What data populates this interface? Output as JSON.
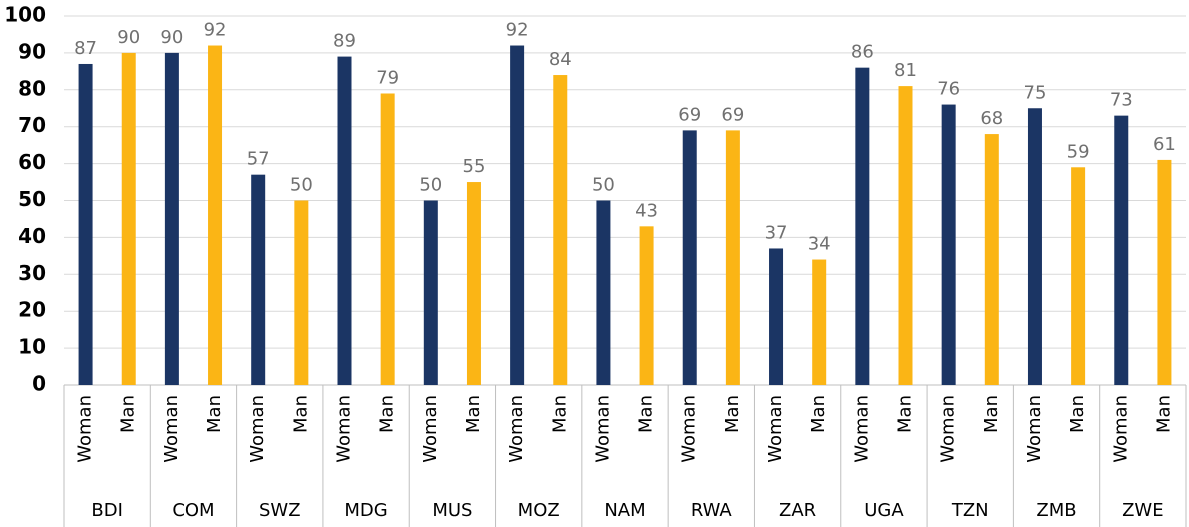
{
  "chart_data": {
    "type": "bar",
    "categories": [
      "BDI",
      "COM",
      "SWZ",
      "MDG",
      "MUS",
      "MOZ",
      "NAM",
      "RWA",
      "ZAR",
      "UGA",
      "TZN",
      "ZMB",
      "ZWE"
    ],
    "series": [
      {
        "name": "Woman",
        "color": "#1b3564",
        "values": [
          87,
          90,
          57,
          89,
          50,
          92,
          50,
          69,
          37,
          86,
          76,
          75,
          73
        ]
      },
      {
        "name": "Man",
        "color": "#fbb515",
        "values": [
          90,
          92,
          50,
          79,
          55,
          84,
          43,
          69,
          34,
          81,
          68,
          59,
          61
        ]
      }
    ],
    "ylim": [
      0,
      100
    ],
    "yticks": [
      0,
      10,
      20,
      30,
      40,
      50,
      60,
      70,
      80,
      90,
      100
    ],
    "grid": true
  }
}
